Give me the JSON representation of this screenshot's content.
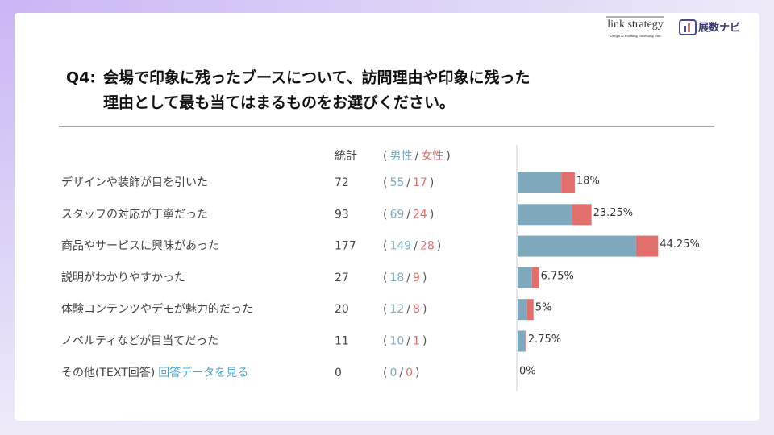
{
  "logos": {
    "brand1": "link strategy",
    "brand1_sub": "Design & Planning consulting firm",
    "brand2": "展数ナビ"
  },
  "question": {
    "number": "Q4:",
    "line1": "会場で印象に残ったブースについて、訪問理由や印象に残った",
    "line2": "理由として最も当てはまるものをお選びください。"
  },
  "chart_data": {
    "type": "bar",
    "orientation": "horizontal",
    "stacked": true,
    "total_header": "統計",
    "punctuation": {
      "open": "(",
      "sep": "/",
      "close": ")"
    },
    "categories": [
      "デザインや装飾が目を引いた",
      "スタッフの対応が丁寧だった",
      "商品やサービスに興味があった",
      "説明がわかりやすかった",
      "体験コンテンツやデモが魅力的だった",
      "ノベルティなどが目当てだった",
      "その他(TEXT回答)"
    ],
    "other_link": "回答データを見る",
    "totals": [
      72,
      93,
      177,
      27,
      20,
      11,
      0
    ],
    "series": [
      {
        "name": "男性",
        "color": "#7ea9bd",
        "values": [
          55,
          69,
          149,
          18,
          12,
          10,
          0
        ]
      },
      {
        "name": "女性",
        "color": "#e36f6c",
        "values": [
          17,
          24,
          28,
          9,
          8,
          1,
          0
        ]
      }
    ],
    "percentages": [
      18,
      23.25,
      44.25,
      6.75,
      5,
      2.75,
      0
    ],
    "value_labels": [
      "18%",
      "23.25%",
      "44.25%",
      "6.75%",
      "5%",
      "2.75%",
      "0%"
    ],
    "xlim": [
      0,
      400
    ]
  }
}
